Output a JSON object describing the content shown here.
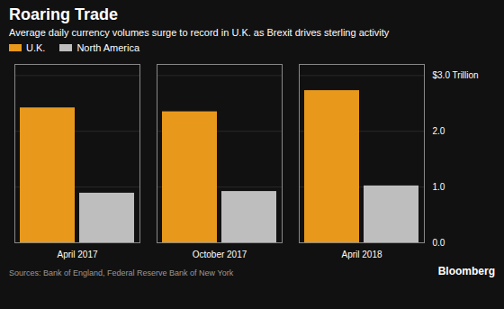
{
  "chart_data": {
    "type": "bar",
    "title": "Roaring Trade",
    "subtitle": "Average daily currency volumes surge to record in U.K. as Brexit drives sterling activity",
    "categories": [
      "April 2017",
      "October 2017",
      "April 2018"
    ],
    "series": [
      {
        "name": "U.K.",
        "color": "#E8991C",
        "values": [
          2.42,
          2.35,
          2.73
        ]
      },
      {
        "name": "North America",
        "color": "#BEBEBE",
        "values": [
          0.89,
          0.92,
          1.02
        ]
      }
    ],
    "ylim": [
      0,
      3.2
    ],
    "yticks": [
      {
        "value": 0.0,
        "label": "0.0"
      },
      {
        "value": 1.0,
        "label": "1.0"
      },
      {
        "value": 2.0,
        "label": "2.0"
      },
      {
        "value": 3.0,
        "label": "$3.0 Trillion"
      }
    ],
    "grid": true,
    "legend": "top left",
    "annotations": [
      "Sources: Bank of England, Federal Reserve Bank of New York",
      "Bloomberg"
    ]
  }
}
